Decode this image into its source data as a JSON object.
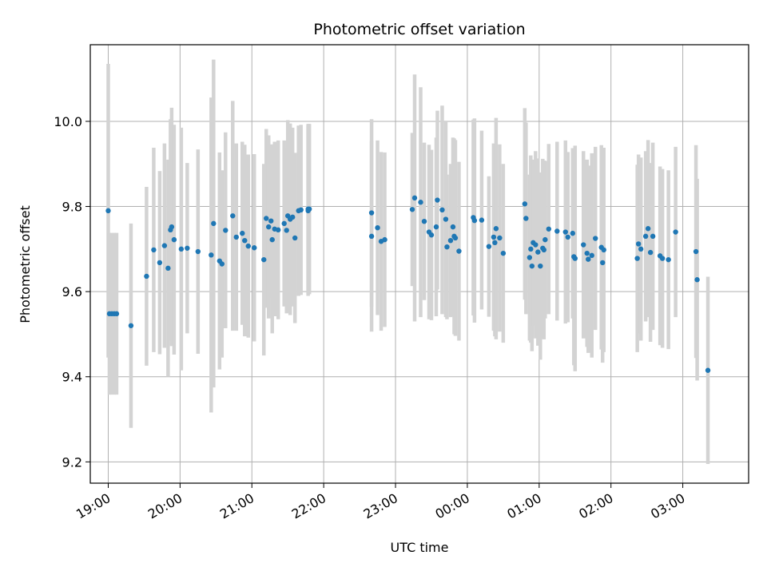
{
  "chart_data": {
    "type": "scatter",
    "title": "Photometric offset variation",
    "xlabel": "UTC time",
    "ylabel": "Photometric offset",
    "x_ticks": [
      "19:00",
      "20:00",
      "21:00",
      "22:00",
      "23:00",
      "00:00",
      "01:00",
      "02:00",
      "03:00"
    ],
    "y_ticks": [
      "9.2",
      "9.4",
      "9.6",
      "9.8",
      "10.0"
    ],
    "xlim": [
      "18:45",
      "27:55"
    ],
    "ylim": [
      9.15,
      10.18
    ],
    "grid": true,
    "point_color": "#1f77b4",
    "errorbar_color": "#d3d3d3",
    "series": [
      {
        "time": [
          "19:00",
          "19:01",
          "19:03",
          "19:05",
          "19:07",
          "19:19",
          "19:32",
          "19:38",
          "19:43",
          "19:47",
          "19:50",
          "19:52",
          "19:53",
          "19:55",
          "20:01",
          "20:06",
          "20:15",
          "20:26",
          "20:28",
          "20:33",
          "20:35",
          "20:38",
          "20:44",
          "20:47",
          "20:52",
          "20:54",
          "20:57",
          "21:02",
          "21:10",
          "21:12",
          "21:14",
          "21:16",
          "21:17",
          "21:19",
          "21:22",
          "21:27",
          "21:29",
          "21:30",
          "21:32",
          "21:34",
          "21:36",
          "21:39",
          "21:41",
          "21:47",
          "21:47",
          "21:48",
          "22:40",
          "22:40",
          "22:45",
          "22:48",
          "22:51",
          "23:14",
          "23:16",
          "23:21",
          "23:24",
          "23:28",
          "23:30",
          "23:34",
          "23:35",
          "23:39",
          "23:42",
          "23:43",
          "23:46",
          "23:48",
          "23:49",
          "23:50",
          "23:53",
          "24:05",
          "24:06",
          "24:12",
          "24:18",
          "24:22",
          "24:23",
          "24:24",
          "24:27",
          "24:30",
          "24:48",
          "24:49",
          "24:52",
          "24:53",
          "24:54",
          "24:55",
          "24:57",
          "24:59",
          "25:01",
          "25:03",
          "25:04",
          "25:05",
          "25:08",
          "25:15",
          "25:22",
          "25:24",
          "25:28",
          "25:29",
          "25:30",
          "25:37",
          "25:40",
          "25:41",
          "25:44",
          "25:47",
          "25:52",
          "25:53",
          "25:54",
          "26:22",
          "26:23",
          "26:25",
          "26:29",
          "26:31",
          "26:33",
          "26:35",
          "26:41",
          "26:43",
          "26:48",
          "26:54",
          "27:11",
          "27:12",
          "27:21"
        ],
        "y": [
          9.79,
          9.548,
          9.548,
          9.548,
          9.548,
          9.52,
          9.636,
          9.698,
          9.668,
          9.708,
          9.655,
          9.745,
          9.752,
          9.722,
          9.7,
          9.702,
          9.694,
          9.686,
          9.76,
          9.672,
          9.665,
          9.744,
          9.778,
          9.728,
          9.737,
          9.72,
          9.707,
          9.703,
          9.675,
          9.772,
          9.752,
          9.766,
          9.722,
          9.747,
          9.745,
          9.76,
          9.744,
          9.778,
          9.77,
          9.775,
          9.726,
          9.79,
          9.792,
          9.794,
          9.79,
          9.794,
          9.73,
          9.785,
          9.75,
          9.718,
          9.722,
          9.793,
          9.82,
          9.81,
          9.765,
          9.74,
          9.733,
          9.752,
          9.815,
          9.792,
          9.77,
          9.705,
          9.72,
          9.752,
          9.73,
          9.726,
          9.695,
          9.774,
          9.767,
          9.768,
          9.706,
          9.728,
          9.715,
          9.748,
          9.726,
          9.69,
          9.806,
          9.772,
          9.68,
          9.7,
          9.66,
          9.715,
          9.71,
          9.693,
          9.66,
          9.702,
          9.698,
          9.722,
          9.747,
          9.742,
          9.74,
          9.728,
          9.737,
          9.682,
          9.678,
          9.71,
          9.69,
          9.676,
          9.685,
          9.725,
          9.704,
          9.668,
          9.698,
          9.678,
          9.712,
          9.7,
          9.73,
          9.748,
          9.692,
          9.73,
          9.684,
          9.678,
          9.675,
          9.74,
          9.694,
          9.628,
          9.415
        ],
        "err": [
          0.345,
          0.19,
          0.19,
          0.19,
          0.19,
          0.24,
          0.21,
          0.24,
          0.215,
          0.24,
          0.255,
          0.26,
          0.28,
          0.27,
          0.285,
          0.2,
          0.24,
          0.37,
          0.385,
          0.255,
          0.22,
          0.23,
          0.27,
          0.22,
          0.215,
          0.225,
          0.215,
          0.22,
          0.225,
          0.21,
          0.215,
          0.18,
          0.22,
          0.205,
          0.21,
          0.195,
          0.195,
          0.225,
          0.225,
          0.21,
          0.2,
          0.2,
          0.2,
          0.2,
          0.2,
          0.2,
          0.224,
          0.22,
          0.205,
          0.21,
          0.205,
          0.18,
          0.29,
          0.27,
          0.185,
          0.205,
          0.2,
          0.21,
          0.21,
          0.245,
          0.23,
          0.17,
          0.18,
          0.21,
          0.23,
          0.23,
          0.21,
          0.23,
          0.24,
          0.21,
          0.165,
          0.22,
          0.22,
          0.26,
          0.22,
          0.21,
          0.225,
          0.225,
          0.195,
          0.22,
          0.2,
          0.195,
          0.22,
          0.22,
          0.22,
          0.21,
          0.21,
          0.185,
          0.2,
          0.21,
          0.215,
          0.2,
          0.2,
          0.255,
          0.265,
          0.22,
          0.22,
          0.22,
          0.24,
          0.215,
          0.24,
          0.235,
          0.24,
          0.22,
          0.21,
          0.215,
          0.2,
          0.208,
          0.21,
          0.22,
          0.21,
          0.21,
          0.21,
          0.2,
          0.25,
          0.237,
          0.22
        ]
      }
    ]
  }
}
